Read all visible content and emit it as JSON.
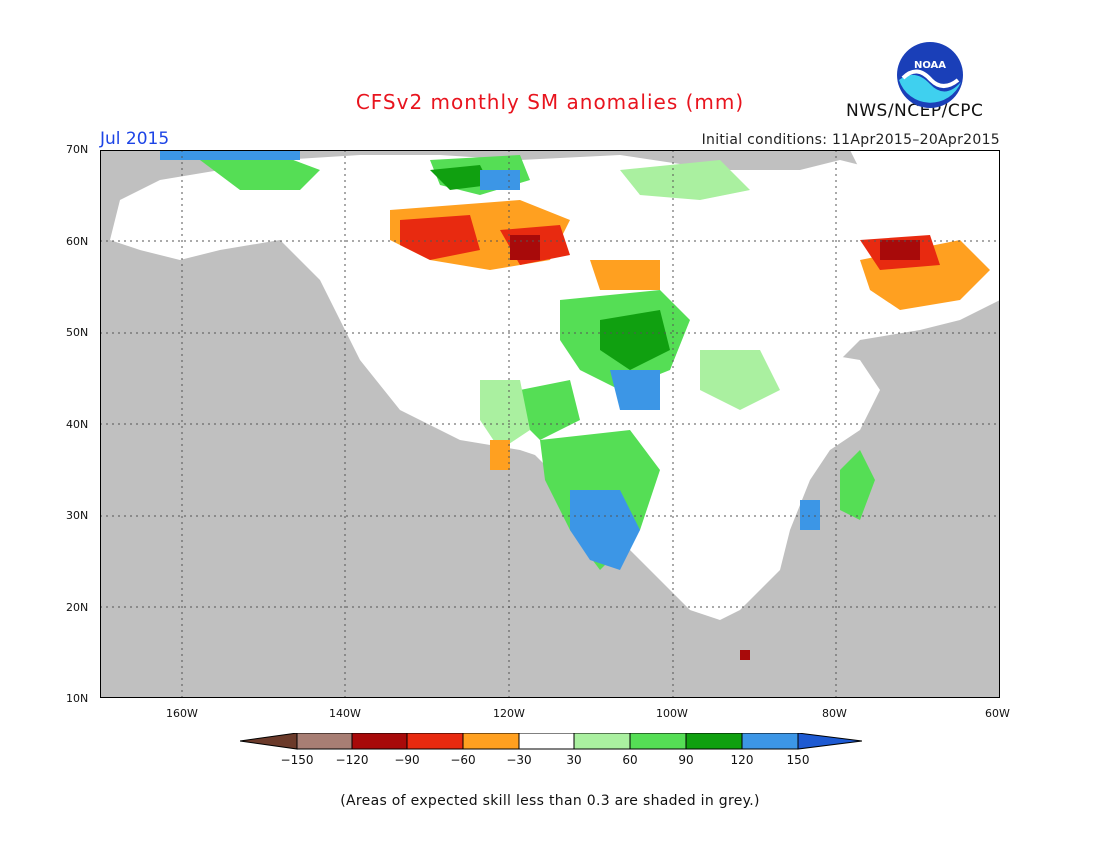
{
  "title": "CFSv2 monthly SM anomalies (mm)",
  "agency": "NWS/NCEP/CPC",
  "logo_text": "NOAA",
  "valid_month": "Jul 2015",
  "initial_conditions": "Initial conditions: 11Apr2015–20Apr2015",
  "footnote": "(Areas of expected skill less than 0.3 are shaded in grey.)",
  "map": {
    "lat_labels": [
      "70N",
      "60N",
      "50N",
      "40N",
      "30N",
      "20N",
      "10N"
    ],
    "lon_labels": [
      "160W",
      "140W",
      "120W",
      "100W",
      "80W",
      "60W"
    ],
    "background_color": "#c0c0c0",
    "low_skill_color": "#c0c0c0",
    "near_zero_color": "#ffffff"
  },
  "legend": {
    "tick_labels": [
      "−150",
      "−120",
      "−90",
      "−60",
      "−30",
      "30",
      "60",
      "90",
      "120",
      "150"
    ],
    "colors": [
      "#6b3a2a",
      "#a87e74",
      "#a80a0a",
      "#e82a10",
      "#ffa020",
      "#ffc84a",
      "#ffffff",
      "#aaf0a0",
      "#55de55",
      "#10a010",
      "#3c96e6",
      "#1e5ad2"
    ]
  }
}
